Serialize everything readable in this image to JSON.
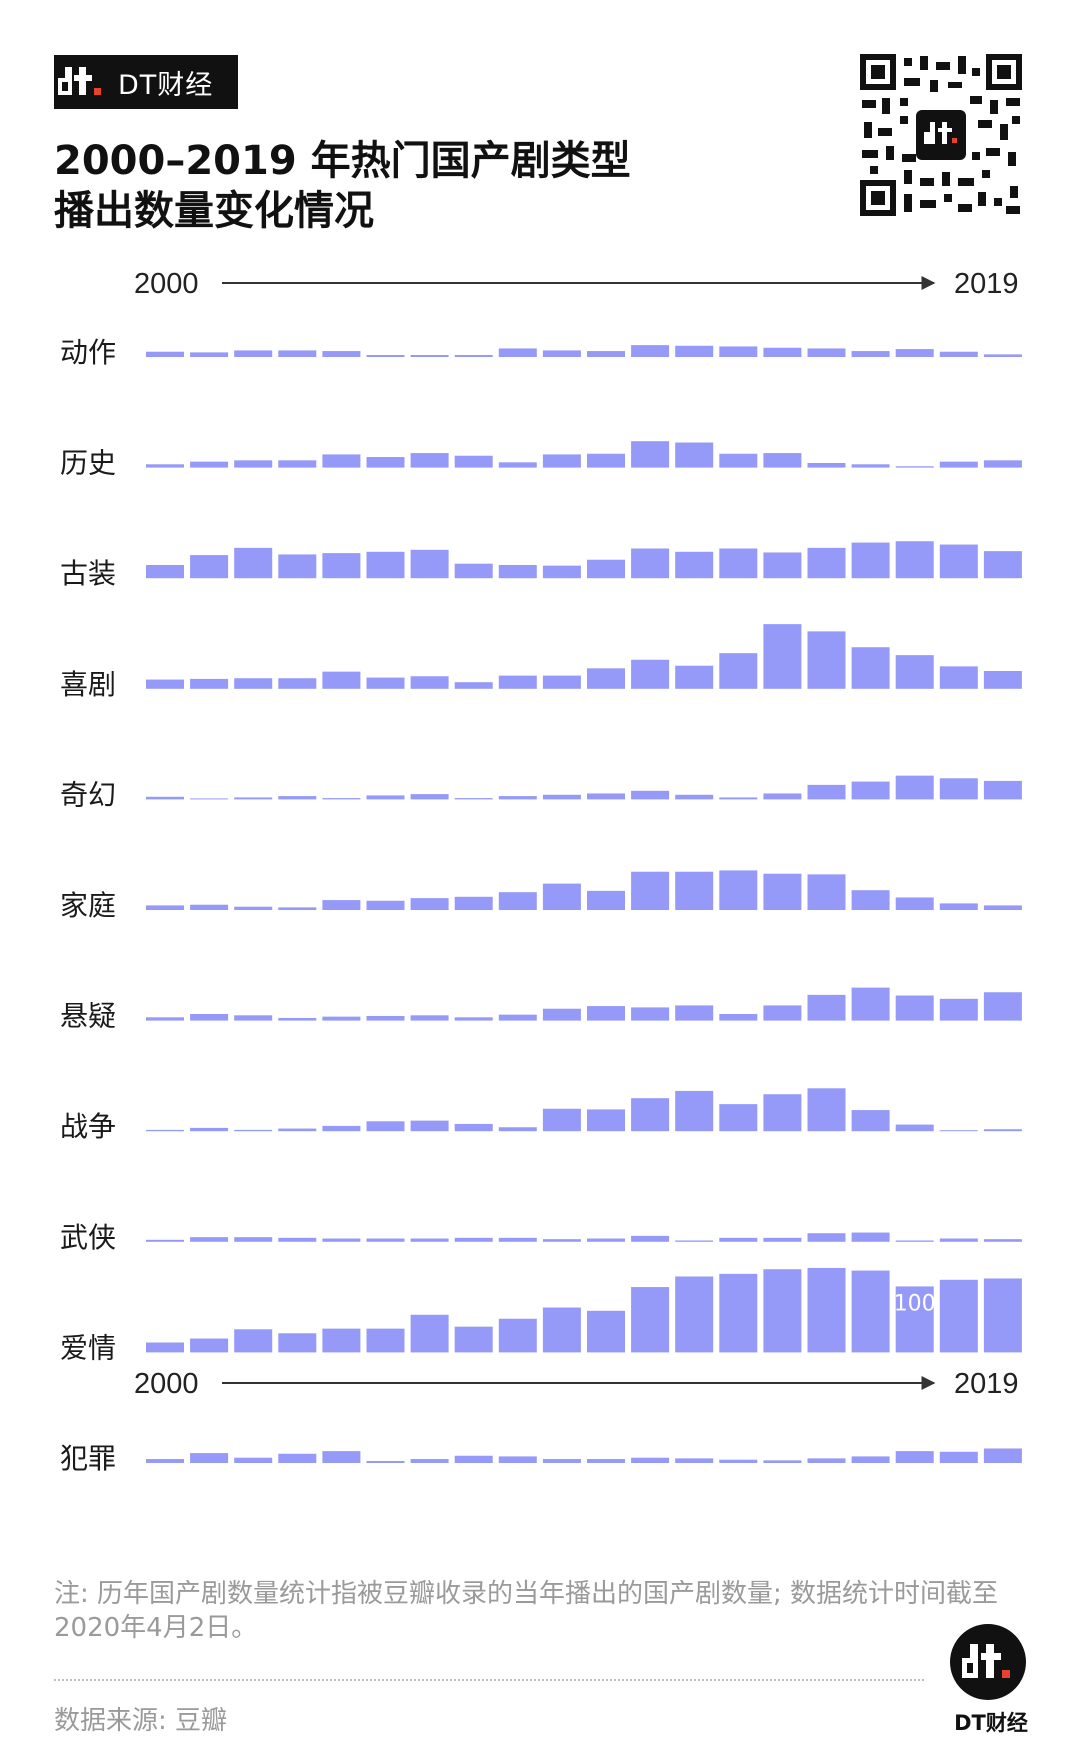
{
  "brand": {
    "name": "DT财经",
    "icon": "dt-logo-icon"
  },
  "title": {
    "line1": "2000–2019 年热门国产剧类型",
    "line2": "播出数量变化情况"
  },
  "qr_code": {
    "icon": "qr-code-icon"
  },
  "timeline": {
    "start_label": "2000",
    "end_label": "2019"
  },
  "chart_data": {
    "type": "bar",
    "x": [
      2000,
      2001,
      2002,
      2003,
      2004,
      2005,
      2006,
      2007,
      2008,
      2009,
      2010,
      2011,
      2012,
      2013,
      2014,
      2015,
      2016,
      2017,
      2018,
      2019
    ],
    "value_label": {
      "series": "爱情",
      "year": 2017,
      "text": "100"
    },
    "bar_color": "#9599f7",
    "series": [
      {
        "name": "动作",
        "values": [
          8,
          7,
          10,
          10,
          9,
          3,
          3,
          3,
          13,
          10,
          9,
          18,
          17,
          16,
          14,
          13,
          9,
          12,
          8,
          4
        ]
      },
      {
        "name": "历史",
        "values": [
          5,
          9,
          11,
          11,
          20,
          16,
          22,
          18,
          8,
          20,
          21,
          40,
          38,
          21,
          22,
          7,
          5,
          2,
          9,
          11
        ]
      },
      {
        "name": "古装",
        "values": [
          20,
          35,
          46,
          36,
          38,
          40,
          43,
          22,
          20,
          19,
          28,
          45,
          40,
          45,
          39,
          46,
          54,
          56,
          51,
          41
        ]
      },
      {
        "name": "喜剧",
        "values": [
          14,
          15,
          16,
          16,
          26,
          17,
          19,
          10,
          20,
          20,
          31,
          44,
          35,
          54,
          98,
          87,
          63,
          51,
          34,
          27
        ]
      },
      {
        "name": "奇幻",
        "values": [
          4,
          1,
          3,
          5,
          2,
          6,
          8,
          2,
          5,
          7,
          9,
          13,
          7,
          3,
          9,
          22,
          27,
          36,
          32,
          28
        ]
      },
      {
        "name": "家庭",
        "values": [
          7,
          8,
          5,
          4,
          15,
          14,
          18,
          20,
          27,
          40,
          29,
          58,
          58,
          60,
          55,
          54,
          30,
          19,
          10,
          7
        ]
      },
      {
        "name": "悬疑",
        "values": [
          5,
          10,
          8,
          4,
          6,
          7,
          8,
          5,
          9,
          18,
          22,
          20,
          23,
          10,
          23,
          39,
          50,
          38,
          33,
          43
        ]
      },
      {
        "name": "战争",
        "values": [
          2,
          5,
          2,
          4,
          8,
          15,
          16,
          11,
          6,
          34,
          33,
          50,
          61,
          41,
          56,
          65,
          32,
          10,
          1,
          3
        ]
      },
      {
        "name": "武侠",
        "values": [
          3,
          7,
          7,
          6,
          5,
          5,
          5,
          6,
          6,
          4,
          5,
          9,
          2,
          6,
          6,
          13,
          14,
          2,
          5,
          4
        ]
      },
      {
        "name": "爱情",
        "values": [
          15,
          21,
          35,
          29,
          36,
          36,
          57,
          39,
          51,
          68,
          63,
          99,
          115,
          119,
          126,
          128,
          124,
          100,
          110,
          112
        ]
      },
      {
        "name": "犯罪",
        "values": [
          6,
          15,
          8,
          14,
          18,
          3,
          6,
          11,
          10,
          6,
          6,
          8,
          7,
          5,
          4,
          7,
          10,
          18,
          17,
          22
        ]
      }
    ]
  },
  "note": "注: 历年国产剧数量统计指被豆瓣收录的当年播出的国产剧数量; 数据统计时间截至2020年4月2日。",
  "source": "数据来源: 豆瓣",
  "footer_brand": "DT财经",
  "footer_icon": "dt-logo-icon"
}
